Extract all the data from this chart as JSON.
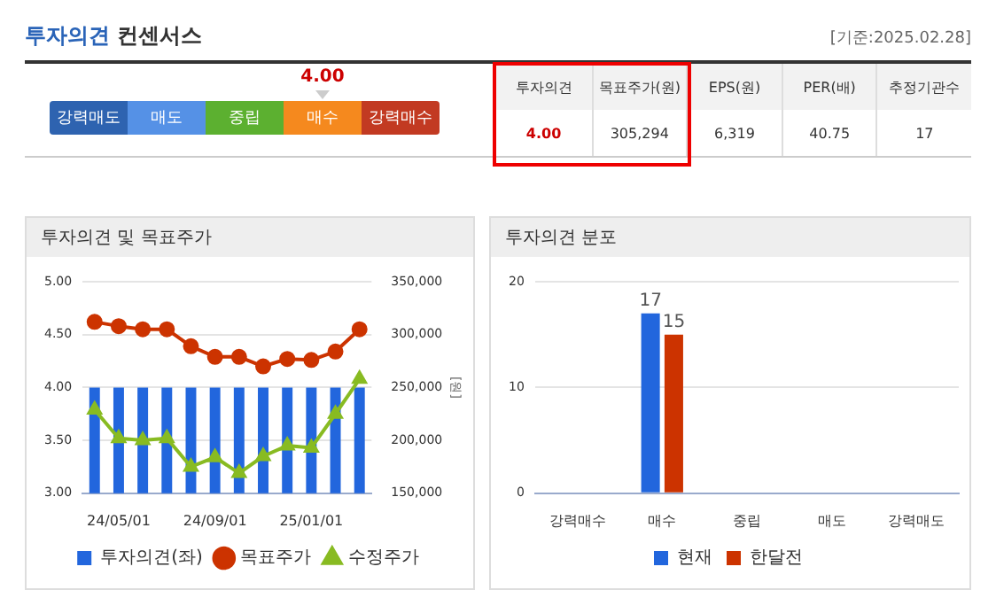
{
  "chart_data": [
    {
      "type": "other",
      "title": "투자의견 컨센서스",
      "subtitle": "[기준:2025.02.28]",
      "categories": [
        "강력매도",
        "매도",
        "중립",
        "매수",
        "강력매수"
      ],
      "colors": [
        "#2e63b0",
        "#5591e6",
        "#5cb030",
        "#f5891e",
        "#c23a22"
      ],
      "annotations": [
        {
          "text": "4.00",
          "x": "매수"
        },
        "투자의견",
        "목표주가(원)",
        "EPS(원)",
        "PER(배)",
        "추정기관수",
        "4.00",
        "305,294",
        "6,319",
        "40.75",
        "17"
      ]
    },
    {
      "type": "bar",
      "title": "투자의견 및 목표주가",
      "y2label": "[원]",
      "categories": [
        null,
        "24/05/01",
        null,
        null,
        null,
        "24/09/01",
        null,
        null,
        null,
        "25/01/01",
        null,
        null
      ],
      "series": [
        {
          "name": "투자의견(좌)",
          "type": "bar",
          "color": "#2266dd",
          "values": [
            4,
            4,
            4,
            4,
            4,
            4,
            4,
            4,
            4,
            4,
            4,
            4
          ]
        },
        {
          "name": "목표주가",
          "type": "line",
          "axis": "y2",
          "marker": "circle",
          "color": "#cc3300",
          "values": [
            312000,
            308000,
            305000,
            305000,
            289000,
            279000,
            279000,
            270000,
            277000,
            276000,
            284000,
            305000
          ]
        },
        {
          "name": "수정주가",
          "type": "line",
          "axis": "y2",
          "marker": "triangle",
          "color": "#88bb22",
          "values": [
            229000,
            202000,
            200000,
            202000,
            175000,
            184000,
            169000,
            185000,
            195000,
            193000,
            225000,
            258000
          ]
        }
      ],
      "ylim": [
        3,
        5
      ],
      "yticks": [
        {
          "value": 3,
          "label": "3.00"
        },
        {
          "value": 3.5,
          "label": "3.50"
        },
        {
          "value": 4,
          "label": "4.00"
        },
        {
          "value": 4.5,
          "label": "4.50"
        },
        {
          "value": 5,
          "label": "5.00"
        }
      ],
      "y2lim": [
        150000,
        350000
      ],
      "y2ticks": [
        {
          "value": 150000,
          "label": "150,000"
        },
        {
          "value": 200000,
          "label": "200,000"
        },
        {
          "value": 250000,
          "label": "250,000"
        },
        {
          "value": 300000,
          "label": "300,000"
        },
        {
          "value": 350000,
          "label": "350,000"
        }
      ],
      "grid": "y",
      "legend": "bottom"
    },
    {
      "type": "bar",
      "title": "투자의견 분포",
      "categories": [
        "강력매수",
        "매수",
        "중립",
        "매도",
        "강력매도"
      ],
      "series": [
        {
          "name": "현재",
          "color": "#2266dd",
          "values": [
            0,
            17,
            0,
            0,
            0
          ],
          "value_labels": [
            null,
            "17",
            null,
            null,
            null
          ]
        },
        {
          "name": "한달전",
          "color": "#cc3300",
          "values": [
            0,
            15,
            0,
            0,
            0
          ],
          "value_labels": [
            null,
            "15",
            null,
            null,
            null
          ]
        }
      ],
      "ylim": [
        0,
        20
      ],
      "yticks": [
        0,
        10,
        20
      ],
      "grid": "y",
      "legend": "bottom"
    }
  ]
}
